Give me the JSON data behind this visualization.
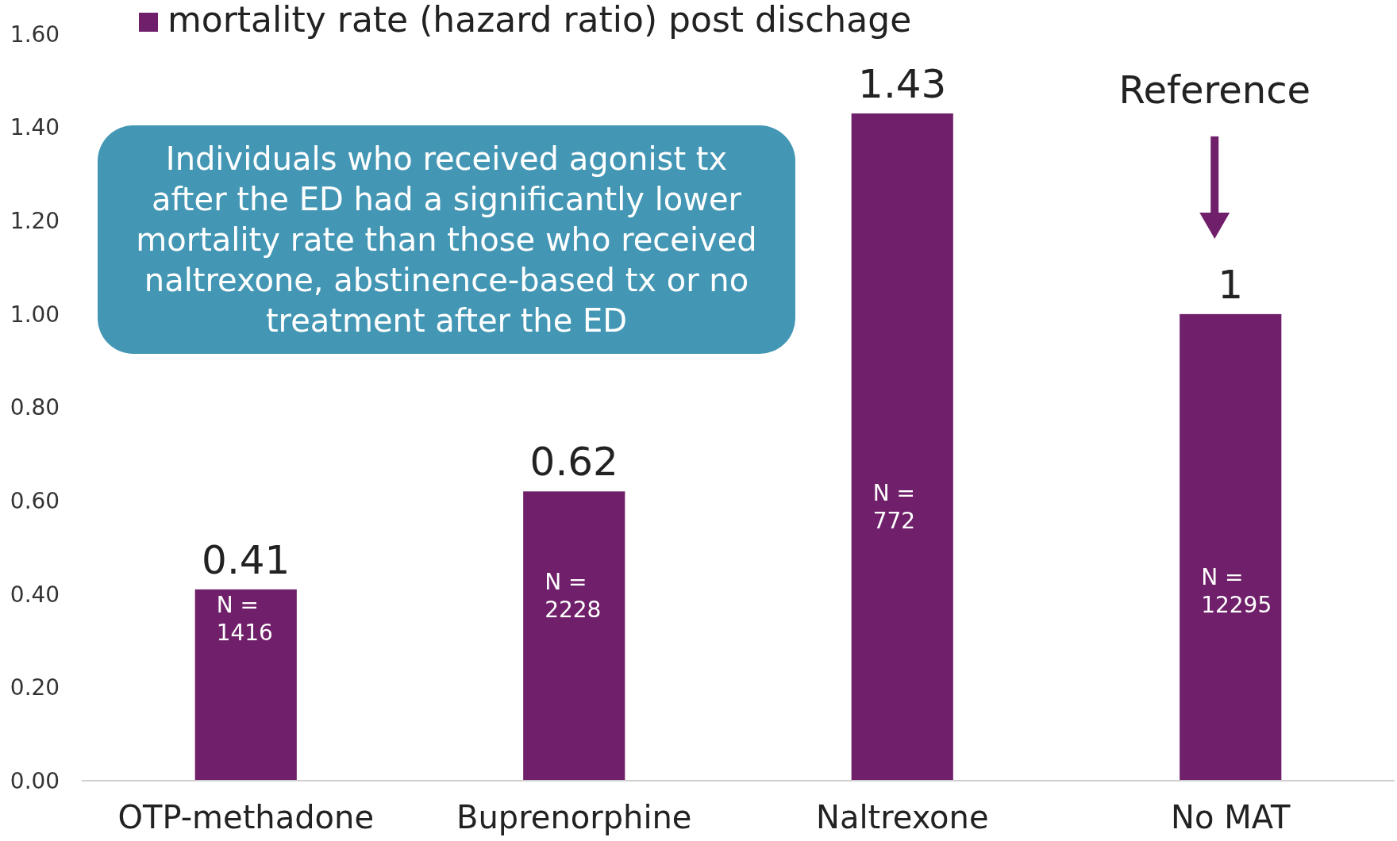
{
  "chart_data": {
    "type": "bar",
    "categories": [
      "OTP-methadone",
      "Buprenorphine",
      "Naltrexone",
      "No MAT"
    ],
    "series": [
      {
        "name": "mortality rate (hazard ratio) post dischage",
        "color": "#70206a",
        "values": [
          0.41,
          0.62,
          1.43,
          1
        ]
      }
    ],
    "ylim": [
      0,
      1.6
    ],
    "yticks": [
      {
        "value": 0,
        "label": "0.00"
      },
      {
        "value": 0.2,
        "label": "0.20"
      },
      {
        "value": 0.4,
        "label": "0.40"
      },
      {
        "value": 0.6,
        "label": "0.60"
      },
      {
        "value": 0.8,
        "label": "0.80"
      },
      {
        "value": 1,
        "label": "1.00"
      },
      {
        "value": 1.2,
        "label": "1.20"
      },
      {
        "value": 1.4,
        "label": "1.40"
      },
      {
        "value": 1.6,
        "label": "1.60"
      }
    ],
    "data_labels": true,
    "legend": "top",
    "grid": false,
    "annotations": [
      "Individuals who received agonist tx after the ED had a significantly lower mortality rate than those who received naltrexone, abstinence-based tx or no treatment after the ED",
      "N = 1416",
      "N = 2228",
      "N = 772",
      "N = 12295",
      "Reference"
    ]
  }
}
